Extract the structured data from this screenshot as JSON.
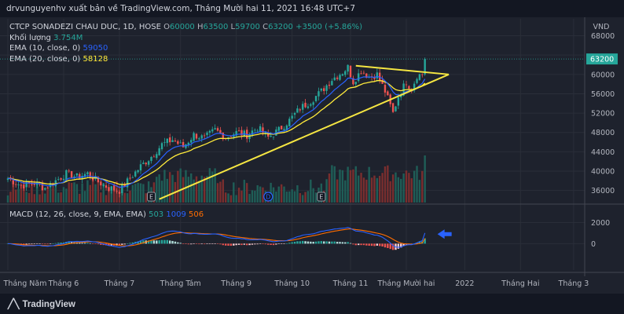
{
  "header": {
    "publish_text": "drvunguyenhv xuất bản về TradingView.com, Tháng Mười hai 11, 2021 16:48 UTC+7"
  },
  "legend": {
    "symbol": "CTCP SONADEZI CHAU DUC, 1D, HOSE",
    "open_label": "O",
    "open": "60000",
    "high_label": "H",
    "high": "63500",
    "low_label": "L",
    "low": "59700",
    "close_label": "C",
    "close": "63200",
    "change": "+3500 (+5.86%)",
    "volume_label": "Khối lượng",
    "volume": "3.754M",
    "ema10_label": "EMA (10, close, 0)",
    "ema10": "59050",
    "ema20_label": "EMA (20, close, 0)",
    "ema20": "58128"
  },
  "macd_legend": {
    "label": "MACD (12, 26, close, 9, EMA, EMA)",
    "hist": "503",
    "macd": "1009",
    "signal": "506"
  },
  "branding": {
    "logo_text": "TradingView"
  },
  "colors": {
    "background": "#1e222d",
    "grid": "#2a2e39",
    "up": "#26a69a",
    "down": "#ef5350",
    "ema10": "#2962ff",
    "ema20": "#ffeb3b",
    "trendline": "#f5e642",
    "macd_line": "#2962ff",
    "signal_line": "#ff6d00",
    "price_label": "#26a69a",
    "arrow": "#2962ff"
  },
  "chart_data": [
    {
      "type": "candlestick",
      "currency": "VND",
      "price_axis_ticks": [
        36000,
        40000,
        44000,
        48000,
        52000,
        56000,
        60000,
        64000,
        68000
      ],
      "ylim": [
        33500,
        71500
      ],
      "last_price_label": "63200",
      "time_axis_labels": [
        "Tháng Năm",
        "Tháng 6",
        "Tháng 7",
        "Tháng Tám",
        "Tháng 9",
        "Tháng 10",
        "Tháng 11",
        "Tháng Mười hai",
        "2022",
        "Tháng Hai",
        "Tháng 3"
      ],
      "time_label_positions_day_index": [
        0,
        21,
        42,
        65,
        86,
        107,
        129,
        150,
        172,
        193,
        213
      ],
      "num_candles": 158,
      "close_anchors": [
        [
          0,
          38500
        ],
        [
          5,
          37000
        ],
        [
          10,
          37500
        ],
        [
          14,
          36500
        ],
        [
          18,
          38000
        ],
        [
          22,
          39500
        ],
        [
          26,
          38800
        ],
        [
          30,
          39500
        ],
        [
          34,
          37800
        ],
        [
          38,
          36500
        ],
        [
          42,
          36000
        ],
        [
          46,
          38500
        ],
        [
          50,
          41000
        ],
        [
          54,
          43000
        ],
        [
          58,
          45500
        ],
        [
          62,
          46500
        ],
        [
          66,
          45000
        ],
        [
          70,
          47500
        ],
        [
          74,
          46800
        ],
        [
          78,
          48500
        ],
        [
          82,
          47000
        ],
        [
          86,
          48000
        ],
        [
          90,
          47500
        ],
        [
          94,
          49000
        ],
        [
          98,
          47000
        ],
        [
          102,
          48500
        ],
        [
          106,
          50500
        ],
        [
          110,
          53000
        ],
        [
          114,
          54500
        ],
        [
          118,
          56500
        ],
        [
          122,
          59000
        ],
        [
          126,
          60500
        ],
        [
          128,
          61500
        ],
        [
          130,
          58500
        ],
        [
          133,
          60800
        ],
        [
          136,
          59500
        ],
        [
          139,
          60000
        ],
        [
          142,
          56500
        ],
        [
          145,
          52000
        ],
        [
          147,
          55500
        ],
        [
          150,
          58500
        ],
        [
          152,
          57000
        ],
        [
          154,
          59800
        ],
        [
          156,
          60000
        ],
        [
          157,
          63200
        ]
      ],
      "trendlines": [
        {
          "from": [
            57,
            34200
          ],
          "to": [
            166,
            60000
          ]
        },
        {
          "from": [
            131,
            61800
          ],
          "to": [
            166,
            60000
          ]
        }
      ],
      "event_markers": [
        {
          "day": 54,
          "text": "E"
        },
        {
          "day": 118,
          "text": "E"
        }
      ],
      "dividend_marker": {
        "day": 98,
        "text": "D"
      }
    },
    {
      "type": "macd",
      "ticks": [
        0,
        2000
      ],
      "ylim": [
        -2500,
        3600
      ],
      "last_values": {
        "hist": 503,
        "macd": 1009,
        "signal": 506
      }
    }
  ]
}
